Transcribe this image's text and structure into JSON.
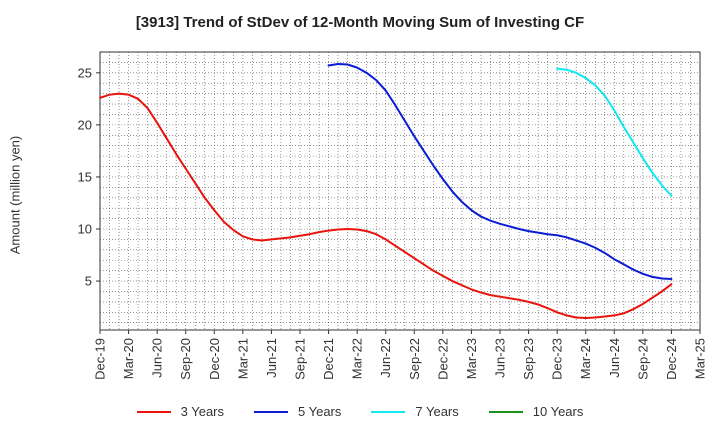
{
  "chart_data": {
    "type": "line",
    "title": "[3913]  Trend of StDev of 12-Month Moving Sum of Investing CF",
    "ylabel": "Amount (million yen)",
    "xlabel": "",
    "x_ticks": [
      "Dec-19",
      "Mar-20",
      "Jun-20",
      "Sep-20",
      "Dec-20",
      "Mar-21",
      "Jun-21",
      "Sep-21",
      "Dec-21",
      "Mar-22",
      "Jun-22",
      "Sep-22",
      "Dec-22",
      "Mar-23",
      "Jun-23",
      "Sep-23",
      "Dec-23",
      "Mar-24",
      "Jun-24",
      "Sep-24",
      "Dec-24",
      "Mar-25"
    ],
    "y_ticks": [
      5,
      10,
      15,
      20,
      25
    ],
    "ylim": [
      0.3,
      27
    ],
    "grid": true,
    "legend_position": "bottom",
    "series": [
      {
        "name": "3 Years",
        "color": "#e8130c",
        "x": [
          "Dec-19",
          "Jan-20",
          "Feb-20",
          "Mar-20",
          "Apr-20",
          "May-20",
          "Jun-20",
          "Jul-20",
          "Aug-20",
          "Sep-20",
          "Oct-20",
          "Nov-20",
          "Dec-20",
          "Jan-21",
          "Feb-21",
          "Mar-21",
          "Apr-21",
          "May-21",
          "Jun-21",
          "Jul-21",
          "Aug-21",
          "Sep-21",
          "Oct-21",
          "Nov-21",
          "Dec-21",
          "Jan-22",
          "Feb-22",
          "Mar-22",
          "Apr-22",
          "May-22",
          "Jun-22",
          "Jul-22",
          "Aug-22",
          "Sep-22",
          "Oct-22",
          "Nov-22",
          "Dec-22",
          "Jan-23",
          "Feb-23",
          "Mar-23",
          "Apr-23",
          "May-23",
          "Jun-23",
          "Jul-23",
          "Aug-23",
          "Sep-23",
          "Oct-23",
          "Nov-23",
          "Dec-23",
          "Jan-24",
          "Feb-24",
          "Mar-24",
          "Apr-24",
          "May-24",
          "Jun-24",
          "Jul-24",
          "Aug-24",
          "Sep-24",
          "Oct-24",
          "Nov-24",
          "Dec-24"
        ],
        "values": [
          22.6,
          22.9,
          23.0,
          22.9,
          22.5,
          21.6,
          20.2,
          18.7,
          17.2,
          15.8,
          14.4,
          13.0,
          11.8,
          10.7,
          9.9,
          9.3,
          9.0,
          8.9,
          9.0,
          9.1,
          9.2,
          9.35,
          9.5,
          9.7,
          9.85,
          9.95,
          10.0,
          9.95,
          9.8,
          9.5,
          9.0,
          8.4,
          7.8,
          7.2,
          6.6,
          6.0,
          5.5,
          5.0,
          4.6,
          4.2,
          3.9,
          3.65,
          3.5,
          3.35,
          3.2,
          3.0,
          2.75,
          2.4,
          2.0,
          1.7,
          1.5,
          1.45,
          1.5,
          1.6,
          1.7,
          1.9,
          2.3,
          2.8,
          3.4,
          4.0,
          4.7
        ]
      },
      {
        "name": "5 Years",
        "color": "#0a1cd4",
        "x": [
          "Dec-21",
          "Jan-22",
          "Feb-22",
          "Mar-22",
          "Apr-22",
          "May-22",
          "Jun-22",
          "Jul-22",
          "Aug-22",
          "Sep-22",
          "Oct-22",
          "Nov-22",
          "Dec-22",
          "Jan-23",
          "Feb-23",
          "Mar-23",
          "Apr-23",
          "May-23",
          "Jun-23",
          "Jul-23",
          "Aug-23",
          "Sep-23",
          "Oct-23",
          "Nov-23",
          "Dec-23",
          "Jan-24",
          "Feb-24",
          "Mar-24",
          "Apr-24",
          "May-24",
          "Jun-24",
          "Jul-24",
          "Aug-24",
          "Sep-24",
          "Oct-24",
          "Nov-24",
          "Dec-24"
        ],
        "values": [
          25.7,
          25.85,
          25.8,
          25.5,
          25.0,
          24.3,
          23.3,
          21.9,
          20.4,
          18.9,
          17.5,
          16.1,
          14.8,
          13.6,
          12.6,
          11.8,
          11.2,
          10.8,
          10.5,
          10.25,
          10.0,
          9.8,
          9.65,
          9.5,
          9.4,
          9.2,
          8.9,
          8.6,
          8.2,
          7.7,
          7.1,
          6.6,
          6.1,
          5.7,
          5.4,
          5.25,
          5.2
        ]
      },
      {
        "name": "7 Years",
        "color": "#11e8f0",
        "x": [
          "Dec-23",
          "Jan-24",
          "Feb-24",
          "Mar-24",
          "Apr-24",
          "May-24",
          "Jun-24",
          "Jul-24",
          "Aug-24",
          "Sep-24",
          "Oct-24",
          "Nov-24",
          "Dec-24"
        ],
        "values": [
          25.4,
          25.3,
          25.0,
          24.5,
          23.8,
          22.8,
          21.4,
          19.8,
          18.3,
          16.8,
          15.4,
          14.2,
          13.2
        ]
      },
      {
        "name": "10 Years",
        "color": "#1a8f1a",
        "x": [],
        "values": []
      }
    ]
  }
}
